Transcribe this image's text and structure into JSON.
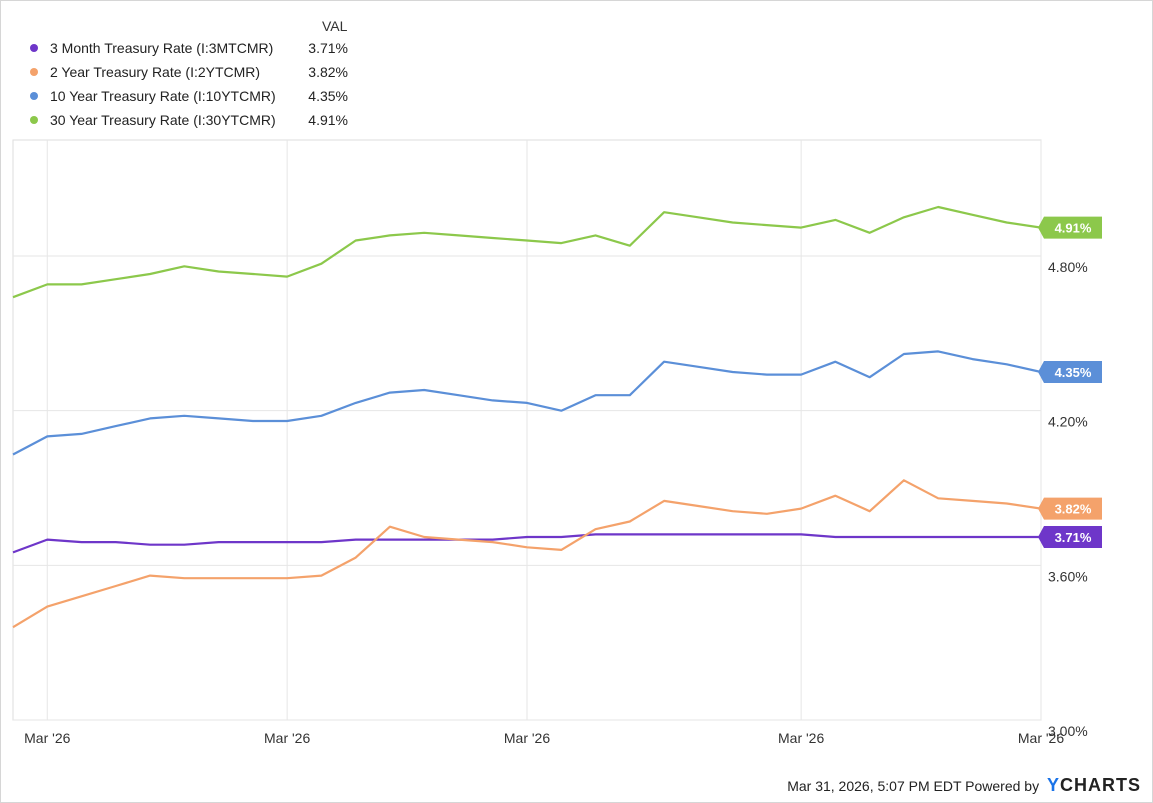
{
  "legend": {
    "header": "VAL"
  },
  "chart_data": {
    "type": "line",
    "categories": [
      "",
      "Mar '26",
      "",
      "",
      "",
      "",
      "",
      "",
      "Mar '26",
      "",
      "",
      "",
      "",
      "",
      "",
      "Mar '26",
      "",
      "",
      "",
      "",
      "",
      "",
      "",
      "Mar '26",
      "",
      "",
      "",
      "",
      "",
      "",
      "Mar '26"
    ],
    "x_tick_labels": [
      "Mar '26",
      "Mar '26",
      "Mar '26",
      "Mar '26",
      "Mar '26"
    ],
    "y_tick_labels": [
      "4.80%",
      "4.20%",
      "3.60%",
      "3.00%"
    ],
    "y_ticks": [
      4.8,
      4.2,
      3.6,
      3.0
    ],
    "ylim": [
      3.0,
      5.25
    ],
    "grid": true,
    "legend_position": "top-left",
    "series": [
      {
        "name": "3 Month Treasury Rate (I:3MTCMR)",
        "last_label": "3.71%",
        "color": "#6e36c9",
        "values": [
          3.65,
          3.7,
          3.69,
          3.69,
          3.68,
          3.68,
          3.69,
          3.69,
          3.69,
          3.69,
          3.7,
          3.7,
          3.7,
          3.7,
          3.7,
          3.71,
          3.71,
          3.72,
          3.72,
          3.72,
          3.72,
          3.72,
          3.72,
          3.72,
          3.71,
          3.71,
          3.71,
          3.71,
          3.71,
          3.71,
          3.71
        ]
      },
      {
        "name": "2 Year Treasury Rate (I:2YTCMR)",
        "last_label": "3.82%",
        "color": "#f4a26b",
        "values": [
          3.36,
          3.44,
          3.48,
          3.52,
          3.56,
          3.55,
          3.55,
          3.55,
          3.55,
          3.56,
          3.63,
          3.75,
          3.71,
          3.7,
          3.69,
          3.67,
          3.66,
          3.74,
          3.77,
          3.85,
          3.83,
          3.81,
          3.8,
          3.82,
          3.87,
          3.81,
          3.93,
          3.86,
          3.85,
          3.84,
          3.82
        ]
      },
      {
        "name": "10 Year Treasury Rate (I:10YTCMR)",
        "last_label": "4.35%",
        "color": "#5b8fd8",
        "values": [
          4.03,
          4.1,
          4.11,
          4.14,
          4.17,
          4.18,
          4.17,
          4.16,
          4.16,
          4.18,
          4.23,
          4.27,
          4.28,
          4.26,
          4.24,
          4.23,
          4.2,
          4.26,
          4.26,
          4.39,
          4.37,
          4.35,
          4.34,
          4.34,
          4.39,
          4.33,
          4.42,
          4.43,
          4.4,
          4.38,
          4.35
        ]
      },
      {
        "name": "30 Year Treasury Rate (I:30YTCMR)",
        "last_label": "4.91%",
        "color": "#8cc84b",
        "values": [
          4.64,
          4.69,
          4.69,
          4.71,
          4.73,
          4.76,
          4.74,
          4.73,
          4.72,
          4.77,
          4.86,
          4.88,
          4.89,
          4.88,
          4.87,
          4.86,
          4.85,
          4.88,
          4.84,
          4.97,
          4.95,
          4.93,
          4.92,
          4.91,
          4.94,
          4.89,
          4.95,
          4.99,
          4.96,
          4.93,
          4.91
        ]
      }
    ]
  },
  "footer": {
    "timestamp": "Mar 31, 2026, 5:07 PM EDT",
    "powered_by": "Powered by",
    "brand_y": "Y",
    "brand_rest": "CHARTS"
  }
}
